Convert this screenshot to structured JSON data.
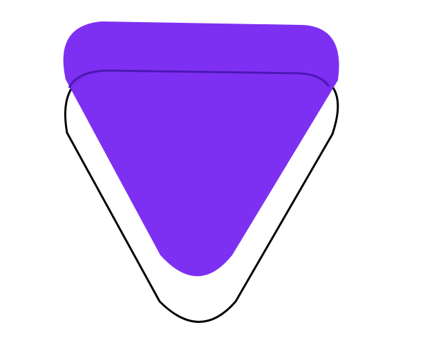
{
  "colors": {
    "background": "#ffffff",
    "filled_shape": "#7b2cf2",
    "outline_shape": "#000000"
  },
  "shapes": [
    {
      "name": "outlined-rounded-triangle",
      "style": "outline",
      "points_down": true
    },
    {
      "name": "filled-rounded-triangle",
      "style": "filled",
      "points_down": true
    }
  ]
}
